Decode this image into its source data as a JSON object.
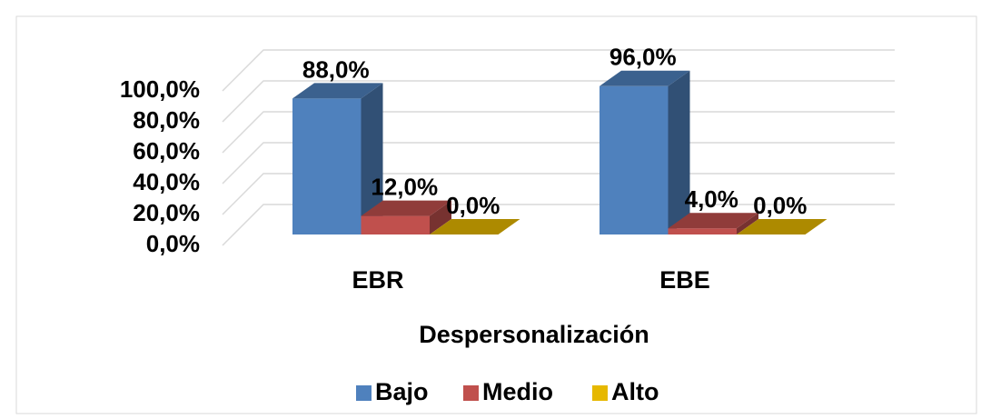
{
  "chart_data": {
    "type": "bar3d",
    "categories": [
      "EBR",
      "EBE"
    ],
    "series": [
      {
        "name": "Bajo",
        "color": "#4f81bd",
        "values": [
          88,
          96
        ],
        "value_labels": [
          "88,0%",
          "96,0%"
        ]
      },
      {
        "name": "Medio",
        "color": "#c0504d",
        "values": [
          12,
          4
        ],
        "value_labels": [
          "12,0%",
          "4,0%"
        ]
      },
      {
        "name": "Alto",
        "color": "#e6b800",
        "values": [
          0,
          0
        ],
        "value_labels": [
          "0,0%",
          "0,0%"
        ]
      }
    ],
    "xlabel": "Despersonalización",
    "ylim": [
      0,
      100
    ],
    "yticks": [
      {
        "value": 0,
        "label": "0,0%"
      },
      {
        "value": 20,
        "label": "20,0%"
      },
      {
        "value": 40,
        "label": "40,0%"
      },
      {
        "value": 60,
        "label": "60,0%"
      },
      {
        "value": 80,
        "label": "80,0%"
      },
      {
        "value": 100,
        "label": "100,0%"
      }
    ],
    "grid": true,
    "legend": "bottom"
  }
}
